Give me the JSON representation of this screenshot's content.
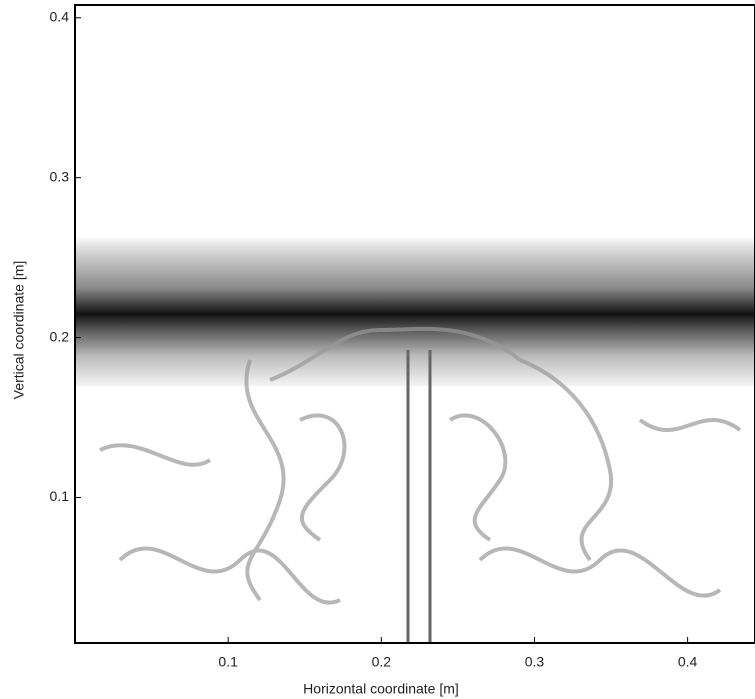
{
  "chart_data": {
    "type": "image",
    "xlabel": "Horizontal coordinate [m]",
    "ylabel": "Vertical coordinate [m]",
    "xlim": [
      0,
      0.444
    ],
    "ylim": [
      0.009,
      0.408
    ],
    "xticks": [
      0.1,
      0.2,
      0.3,
      0.4
    ],
    "yticks": [
      0.1,
      0.2,
      0.3,
      0.4
    ]
  }
}
